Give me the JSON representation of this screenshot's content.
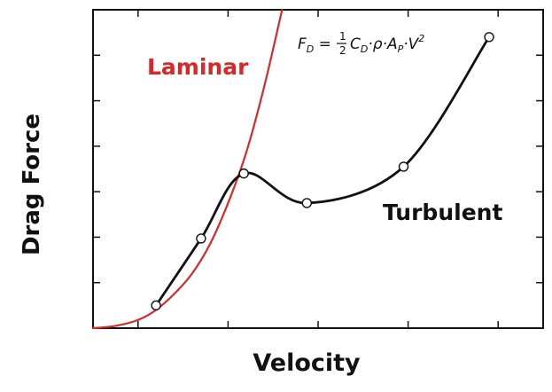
{
  "chart_data": {
    "type": "line",
    "title": "",
    "xlabel": "Velocity",
    "ylabel": "Drag Force",
    "xlim": [
      0,
      10
    ],
    "ylim": [
      0,
      7
    ],
    "xticks": [
      1,
      3,
      5,
      7,
      9
    ],
    "yticks": [
      1,
      2,
      3,
      4,
      5,
      6
    ],
    "tick_labels_shown": false,
    "grid": false,
    "legend": "none",
    "series": [
      {
        "name": "Laminar",
        "color": "#d42a2a",
        "style": "line",
        "x": [
          0.0,
          0.5,
          1.0,
          1.4,
          1.8,
          2.2,
          2.6,
          3.0,
          3.4,
          3.8,
          4.2
        ],
        "y": [
          0.0,
          0.05,
          0.18,
          0.4,
          0.75,
          1.2,
          1.85,
          2.75,
          3.85,
          5.3,
          7.0
        ]
      },
      {
        "name": "Turbulent",
        "color": "#111111",
        "style": "line-with-markers",
        "x": [
          1.4,
          2.4,
          3.35,
          4.75,
          6.9,
          8.8
        ],
        "y": [
          0.5,
          1.97,
          3.4,
          2.75,
          3.55,
          6.4
        ]
      }
    ],
    "annotations": [
      {
        "text": "Laminar",
        "color": "#d42a2a"
      },
      {
        "text": "Turbulent",
        "color": "#111111"
      }
    ],
    "formula": {
      "lhs": "F",
      "lhs_sub": "D",
      "eq": " = ",
      "frac_num": "1",
      "frac_den": "2",
      "term1": "C",
      "term1_sub": "D",
      "dot": "·",
      "rho": "ρ",
      "term2": "A",
      "term2_sub": "P",
      "term3": "V",
      "term3_sup": "2"
    }
  }
}
